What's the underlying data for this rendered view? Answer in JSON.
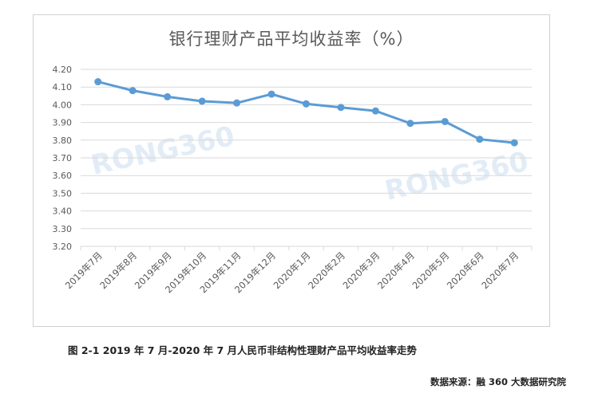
{
  "caption": "图 2-1 2019 年 7 月-2020 年 7 月人民币非结构性理财产品平均收益率走势",
  "source": "数据来源：融 360 大数据研究院",
  "watermark": "RONG360",
  "colors": {
    "line": "#5b9bd5",
    "grid": "#d9d9d9",
    "text": "#595959",
    "watermark": "#dbe8f5"
  },
  "chart_data": {
    "type": "line",
    "title": "银行理财产品平均收益率（%）",
    "xlabel": "",
    "ylabel": "",
    "categories": [
      "2019年7月",
      "2019年8月",
      "2019年9月",
      "2019年10月",
      "2019年11月",
      "2019年12月",
      "2020年1月",
      "2020年2月",
      "2020年3月",
      "2020年4月",
      "2020年5月",
      "2020年6月",
      "2020年7月"
    ],
    "y_ticks": [
      "4.20",
      "4.10",
      "4.00",
      "3.90",
      "3.80",
      "3.70",
      "3.60",
      "3.50",
      "3.40",
      "3.30",
      "3.20"
    ],
    "ylim": [
      3.2,
      4.2
    ],
    "grid": true,
    "legend": "none",
    "series": [
      {
        "values": [
          4.13,
          4.08,
          4.045,
          4.02,
          4.01,
          4.06,
          4.005,
          3.985,
          3.965,
          3.895,
          3.905,
          3.805,
          3.785
        ]
      }
    ]
  }
}
